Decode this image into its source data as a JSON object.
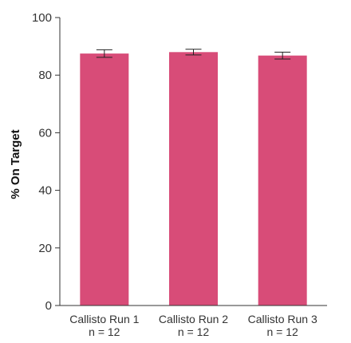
{
  "chart_data": {
    "type": "bar",
    "title": "",
    "xlabel": "",
    "ylabel": "% On Target",
    "ylim": [
      0,
      100
    ],
    "yticks": [
      0,
      20,
      40,
      60,
      80,
      100
    ],
    "categories": [
      "Callisto Run 1",
      "Callisto Run 2",
      "Callisto Run 3"
    ],
    "sublabels": [
      "n = 12",
      "n = 12",
      "n = 12"
    ],
    "values": [
      87.5,
      88.0,
      86.8
    ],
    "errors": [
      1.3,
      1.0,
      1.2
    ],
    "bar_color": "#d84c78",
    "grid": false,
    "legend": "none"
  }
}
